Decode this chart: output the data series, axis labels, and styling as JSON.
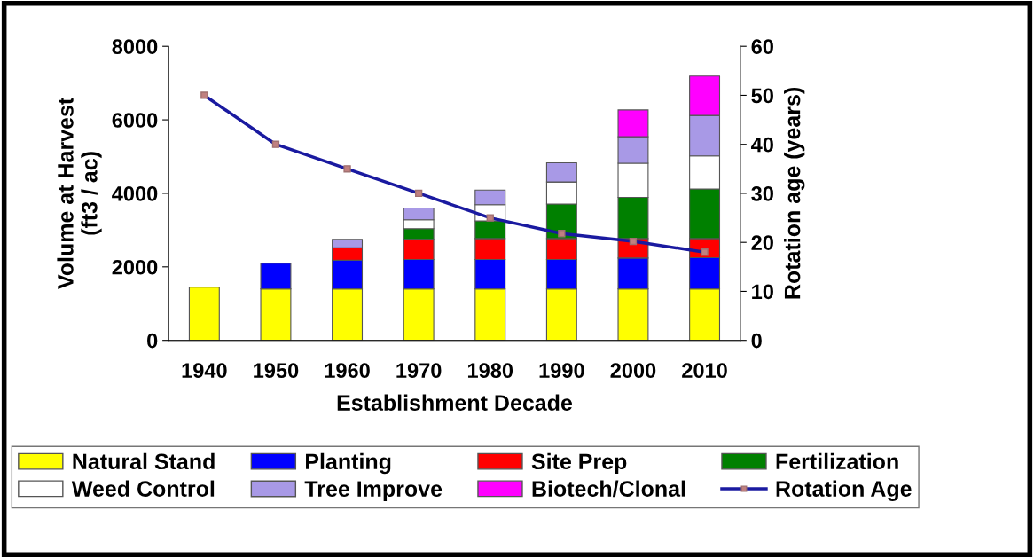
{
  "chart_data": {
    "type": "bar",
    "stacked": true,
    "xlabel": "Establishment Decade",
    "ylabel": "Volume at Harvest\n(ft3 / ac)",
    "y2label": "Rotation age (years)",
    "categories": [
      "1940",
      "1950",
      "1960",
      "1970",
      "1980",
      "1990",
      "2000",
      "2010"
    ],
    "ylim": [
      0,
      8000
    ],
    "yticks": [
      0,
      2000,
      4000,
      6000,
      8000
    ],
    "y2lim": [
      0,
      60
    ],
    "y2ticks": [
      0,
      10,
      20,
      30,
      40,
      50,
      60
    ],
    "grid": false,
    "legend": "bottom",
    "series": [
      {
        "name": "Natural Stand",
        "color": "#ffff00",
        "values": [
          1450,
          1400,
          1400,
          1400,
          1400,
          1400,
          1400,
          1400
        ]
      },
      {
        "name": "Planting",
        "color": "#0000ff",
        "values": [
          null,
          700,
          780,
          800,
          800,
          800,
          840,
          850
        ]
      },
      {
        "name": "Site Prep",
        "color": "#ff0000",
        "values": [
          null,
          null,
          340,
          550,
          570,
          570,
          530,
          520
        ]
      },
      {
        "name": "Fertilization",
        "color": "#008000",
        "values": [
          null,
          null,
          null,
          290,
          480,
          940,
          1120,
          1350
        ]
      },
      {
        "name": "Weed Control",
        "color": "#ffffff",
        "values": [
          null,
          null,
          null,
          240,
          440,
          600,
          930,
          900
        ]
      },
      {
        "name": "Tree Improve",
        "color": "#a899e6",
        "values": [
          null,
          null,
          230,
          320,
          400,
          520,
          720,
          1100
        ]
      },
      {
        "name": "Biotech/Clonal",
        "color": "#ff00ff",
        "values": [
          null,
          null,
          null,
          null,
          null,
          null,
          730,
          1070
        ]
      },
      {
        "name": "Rotation Age",
        "type": "line",
        "axis": "y2",
        "color": "#1a1aa0",
        "marker": "square",
        "values": [
          50,
          40,
          35,
          30,
          25,
          21.8,
          20.2,
          18
        ]
      }
    ]
  }
}
